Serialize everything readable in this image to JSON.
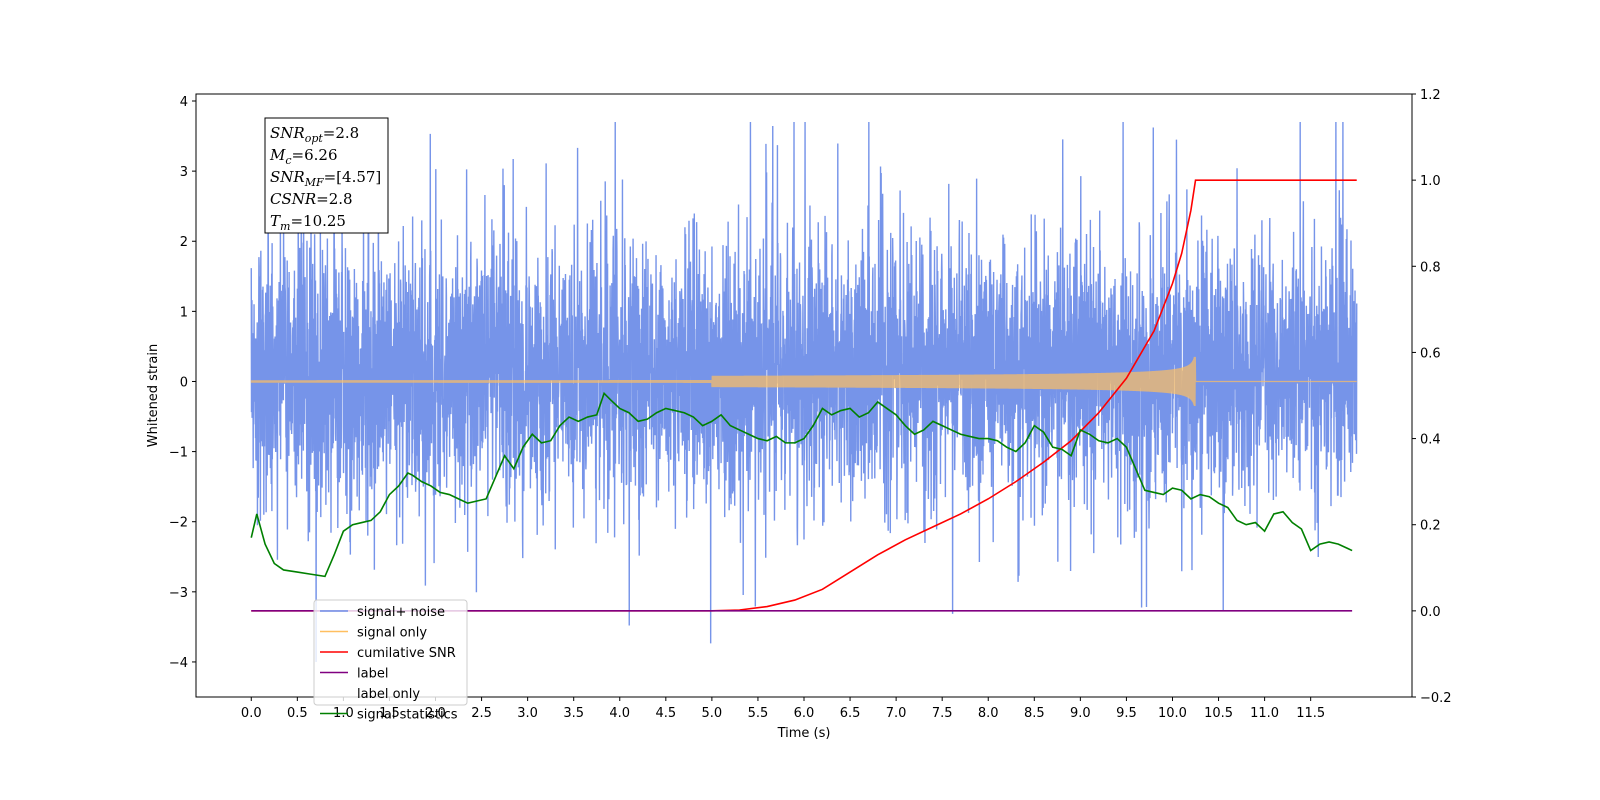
{
  "chart_data": {
    "type": "line",
    "xlabel": "Time (s)",
    "ylabel_left": "Whitened strain",
    "ylabel_right": "",
    "xlim": [
      -0.6,
      12.6
    ],
    "ylim_left": [
      -4.5,
      4.1
    ],
    "ylim_right": [
      -0.2,
      1.2
    ],
    "x_ticks": [
      0.0,
      0.5,
      1.0,
      1.5,
      2.0,
      2.5,
      3.0,
      3.5,
      4.0,
      4.5,
      5.0,
      5.5,
      6.0,
      6.5,
      7.0,
      7.5,
      8.0,
      8.5,
      9.0,
      9.5,
      10.0,
      10.5,
      11.0,
      11.5
    ],
    "x_tick_labels": [
      "0.0",
      "0.5",
      "1.0",
      "1.5",
      "2.0",
      "2.5",
      "3.0",
      "3.5",
      "4.0",
      "4.5",
      "5.0",
      "5.5",
      "6.0",
      "6.5",
      "7.0",
      "7.5",
      "8.0",
      "8.5",
      "9.0",
      "9.5",
      "10.0",
      "10.5",
      "11.0",
      "11.5"
    ],
    "y_ticks_left": [
      -4,
      -3,
      -2,
      -1,
      0,
      1,
      2,
      3,
      4
    ],
    "y_tick_labels_left": [
      "−4",
      "−3",
      "−2",
      "−1",
      "0",
      "1",
      "2",
      "3",
      "4"
    ],
    "y_ticks_right": [
      -0.2,
      0.0,
      0.2,
      0.4,
      0.6,
      0.8,
      1.0,
      1.2
    ],
    "y_tick_labels_right": [
      "−0.2",
      "0.0",
      "0.2",
      "0.4",
      "0.6",
      "0.8",
      "1.0",
      "1.2"
    ],
    "grid": false,
    "legend_position": "lower-left",
    "series": [
      {
        "name": "signal+ noise",
        "axis": "left",
        "color": "#6f8ee8",
        "style": "dense-noise",
        "x_range": [
          0.0,
          12.0
        ],
        "band_typical": [
          -1.3,
          1.6
        ],
        "band_extreme": [
          -4.0,
          3.7
        ]
      },
      {
        "name": "signal only",
        "axis": "left",
        "color": "#ffbf60",
        "style": "chirp",
        "x_range": [
          0.0,
          12.0
        ],
        "chirp_end": 10.25,
        "peak_amplitude": 0.35
      },
      {
        "name": "cumilative SNR",
        "axis": "right",
        "color": "#ff0000",
        "x": [
          0.0,
          5.0,
          5.3,
          5.6,
          5.9,
          6.2,
          6.5,
          6.8,
          7.1,
          7.4,
          7.7,
          8.0,
          8.3,
          8.6,
          8.9,
          9.2,
          9.5,
          9.8,
          10.0,
          10.1,
          10.2,
          10.25,
          12.0
        ],
        "y": [
          0.0,
          0.0,
          0.002,
          0.01,
          0.025,
          0.05,
          0.09,
          0.13,
          0.165,
          0.195,
          0.225,
          0.26,
          0.3,
          0.345,
          0.395,
          0.46,
          0.54,
          0.65,
          0.76,
          0.83,
          0.93,
          1.0,
          1.0
        ]
      },
      {
        "name": "label",
        "axis": "right",
        "color": "#800080",
        "x": [
          0.0,
          11.95
        ],
        "y": [
          0.0,
          0.0
        ]
      },
      {
        "name": "label only",
        "axis": "right",
        "color": "",
        "x": [],
        "y": []
      },
      {
        "name": "signal statistics",
        "axis": "right",
        "color": "#008000",
        "x": [
          0.0,
          0.06,
          0.15,
          0.25,
          0.35,
          0.5,
          0.65,
          0.8,
          0.9,
          1.0,
          1.1,
          1.2,
          1.3,
          1.4,
          1.5,
          1.6,
          1.7,
          1.75,
          1.85,
          1.95,
          2.05,
          2.15,
          2.25,
          2.35,
          2.45,
          2.55,
          2.65,
          2.75,
          2.85,
          2.95,
          3.05,
          3.15,
          3.25,
          3.35,
          3.45,
          3.55,
          3.65,
          3.75,
          3.83,
          3.9,
          4.0,
          4.1,
          4.2,
          4.3,
          4.4,
          4.5,
          4.6,
          4.7,
          4.8,
          4.9,
          5.0,
          5.1,
          5.2,
          5.3,
          5.4,
          5.5,
          5.6,
          5.7,
          5.8,
          5.9,
          6.0,
          6.1,
          6.2,
          6.3,
          6.4,
          6.5,
          6.6,
          6.7,
          6.8,
          6.9,
          7.0,
          7.1,
          7.2,
          7.3,
          7.4,
          7.5,
          7.6,
          7.7,
          7.8,
          7.9,
          8.0,
          8.1,
          8.2,
          8.3,
          8.4,
          8.5,
          8.6,
          8.7,
          8.8,
          8.9,
          9.0,
          9.1,
          9.2,
          9.3,
          9.4,
          9.5,
          9.6,
          9.7,
          9.8,
          9.9,
          10.0,
          10.1,
          10.2,
          10.3,
          10.4,
          10.5,
          10.6,
          10.7,
          10.8,
          10.9,
          11.0,
          11.1,
          11.2,
          11.3,
          11.4,
          11.5,
          11.6,
          11.7,
          11.8,
          11.9,
          11.95
        ],
        "y": [
          0.17,
          0.225,
          0.155,
          0.11,
          0.095,
          0.09,
          0.085,
          0.08,
          0.13,
          0.185,
          0.2,
          0.205,
          0.21,
          0.23,
          0.27,
          0.29,
          0.32,
          0.315,
          0.3,
          0.29,
          0.275,
          0.27,
          0.26,
          0.25,
          0.255,
          0.26,
          0.31,
          0.36,
          0.33,
          0.38,
          0.41,
          0.39,
          0.395,
          0.43,
          0.45,
          0.44,
          0.45,
          0.455,
          0.505,
          0.49,
          0.47,
          0.46,
          0.44,
          0.445,
          0.46,
          0.47,
          0.465,
          0.46,
          0.45,
          0.43,
          0.44,
          0.455,
          0.43,
          0.42,
          0.41,
          0.4,
          0.395,
          0.405,
          0.39,
          0.39,
          0.4,
          0.43,
          0.47,
          0.455,
          0.465,
          0.47,
          0.45,
          0.46,
          0.485,
          0.47,
          0.455,
          0.43,
          0.41,
          0.42,
          0.44,
          0.43,
          0.42,
          0.41,
          0.405,
          0.4,
          0.4,
          0.395,
          0.38,
          0.37,
          0.39,
          0.43,
          0.415,
          0.38,
          0.375,
          0.36,
          0.42,
          0.41,
          0.395,
          0.39,
          0.4,
          0.38,
          0.33,
          0.28,
          0.275,
          0.27,
          0.285,
          0.28,
          0.26,
          0.27,
          0.265,
          0.25,
          0.24,
          0.21,
          0.2,
          0.205,
          0.185,
          0.225,
          0.23,
          0.205,
          0.19,
          0.14,
          0.155,
          0.16,
          0.155,
          0.145,
          0.14
        ]
      }
    ],
    "annotation_lines": [
      {
        "base": "SNR",
        "sub": "opt",
        "rest": "=2.8"
      },
      {
        "base": "M",
        "sub": "c",
        "rest": "=6.26"
      },
      {
        "base": "SNR",
        "sub": "MF",
        "rest": "=[4.57]"
      },
      {
        "base": "CSNR",
        "sub": "",
        "rest": "=2.8"
      },
      {
        "base": "T",
        "sub": "m",
        "rest": "=10.25"
      }
    ]
  }
}
